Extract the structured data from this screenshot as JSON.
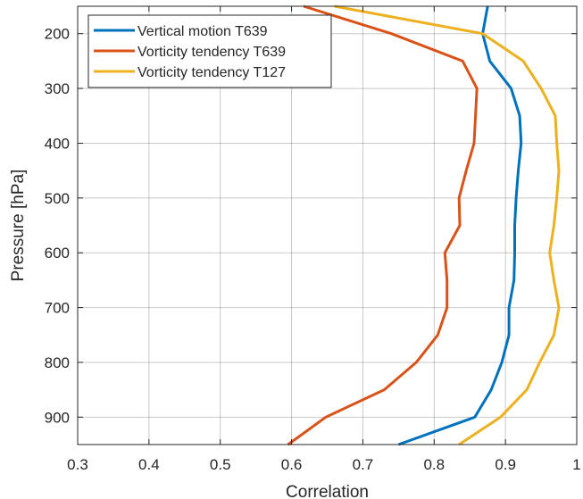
{
  "chart_data": {
    "type": "line",
    "title": "",
    "xlabel": "Correlation",
    "ylabel": "Pressure [hPa]",
    "xlim": [
      0.3,
      1.0
    ],
    "ylim": [
      150,
      950
    ],
    "y_reversed": true,
    "grid": true,
    "legend_position": "top-left",
    "x_ticks": [
      0.3,
      0.4,
      0.5,
      0.6,
      0.7,
      0.8,
      0.9,
      1
    ],
    "x_tick_labels": [
      "0.3",
      "0.4",
      "0.5",
      "0.6",
      "0.7",
      "0.8",
      "0.9",
      "1"
    ],
    "y_ticks": [
      200,
      300,
      400,
      500,
      600,
      700,
      800,
      900
    ],
    "y_tick_labels": [
      "200",
      "300",
      "400",
      "500",
      "600",
      "700",
      "800",
      "900"
    ],
    "series": [
      {
        "name": "Vertical motion T639",
        "color": "#0072BD",
        "x": [
          0.875,
          0.868,
          0.878,
          0.908,
          0.92,
          0.922,
          0.918,
          0.915,
          0.913,
          0.913,
          0.912,
          0.905,
          0.905,
          0.895,
          0.88,
          0.857,
          0.75
        ],
        "y": [
          150,
          200,
          250,
          300,
          350,
          400,
          450,
          500,
          550,
          600,
          650,
          700,
          750,
          800,
          850,
          900,
          950
        ]
      },
      {
        "name": "Vorticity tendency T639",
        "color": "#D95319",
        "x": [
          0.617,
          0.74,
          0.84,
          0.86,
          0.858,
          0.856,
          0.845,
          0.835,
          0.836,
          0.815,
          0.818,
          0.818,
          0.805,
          0.775,
          0.73,
          0.648,
          0.595
        ],
        "y": [
          150,
          200,
          250,
          300,
          350,
          400,
          450,
          500,
          550,
          600,
          650,
          700,
          750,
          800,
          850,
          900,
          950
        ]
      },
      {
        "name": "Vorticity tendency T127",
        "color": "#EDB120",
        "x": [
          0.66,
          0.868,
          0.925,
          0.95,
          0.97,
          0.972,
          0.975,
          0.972,
          0.968,
          0.962,
          0.968,
          0.975,
          0.968,
          0.948,
          0.93,
          0.893,
          0.835
        ],
        "y": [
          150,
          200,
          250,
          300,
          350,
          400,
          450,
          500,
          550,
          600,
          650,
          700,
          750,
          800,
          850,
          900,
          950
        ]
      }
    ]
  }
}
